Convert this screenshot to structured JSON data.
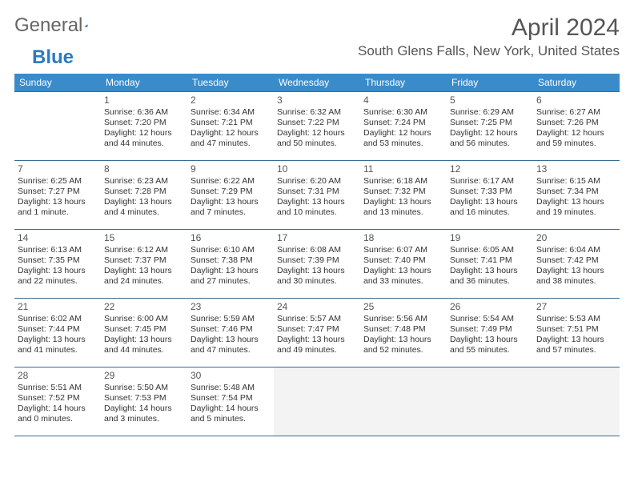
{
  "brand": {
    "part1": "General",
    "part2": "Blue"
  },
  "title": "April 2024",
  "location": "South Glens Falls, New York, United States",
  "colors": {
    "header_bg": "#3a8bc9",
    "header_text": "#ffffff",
    "row_border": "#3a6a8f",
    "trailing_bg": "#f3f3f3",
    "title_color": "#555555",
    "body_text": "#333333",
    "logo_gray": "#666666",
    "logo_blue": "#2b7bbd"
  },
  "typography": {
    "month_title_pt": 30,
    "location_pt": 17,
    "day_header_pt": 12,
    "cell_body_pt": 10.5
  },
  "layout": {
    "cols": 7,
    "rows": 5,
    "aspect_w": 792,
    "aspect_h": 612
  },
  "day_headers": [
    "Sunday",
    "Monday",
    "Tuesday",
    "Wednesday",
    "Thursday",
    "Friday",
    "Saturday"
  ],
  "weeks": [
    [
      null,
      {
        "d": "1",
        "sr": "Sunrise: 6:36 AM",
        "ss": "Sunset: 7:20 PM",
        "dl1": "Daylight: 12 hours",
        "dl2": "and 44 minutes."
      },
      {
        "d": "2",
        "sr": "Sunrise: 6:34 AM",
        "ss": "Sunset: 7:21 PM",
        "dl1": "Daylight: 12 hours",
        "dl2": "and 47 minutes."
      },
      {
        "d": "3",
        "sr": "Sunrise: 6:32 AM",
        "ss": "Sunset: 7:22 PM",
        "dl1": "Daylight: 12 hours",
        "dl2": "and 50 minutes."
      },
      {
        "d": "4",
        "sr": "Sunrise: 6:30 AM",
        "ss": "Sunset: 7:24 PM",
        "dl1": "Daylight: 12 hours",
        "dl2": "and 53 minutes."
      },
      {
        "d": "5",
        "sr": "Sunrise: 6:29 AM",
        "ss": "Sunset: 7:25 PM",
        "dl1": "Daylight: 12 hours",
        "dl2": "and 56 minutes."
      },
      {
        "d": "6",
        "sr": "Sunrise: 6:27 AM",
        "ss": "Sunset: 7:26 PM",
        "dl1": "Daylight: 12 hours",
        "dl2": "and 59 minutes."
      }
    ],
    [
      {
        "d": "7",
        "sr": "Sunrise: 6:25 AM",
        "ss": "Sunset: 7:27 PM",
        "dl1": "Daylight: 13 hours",
        "dl2": "and 1 minute."
      },
      {
        "d": "8",
        "sr": "Sunrise: 6:23 AM",
        "ss": "Sunset: 7:28 PM",
        "dl1": "Daylight: 13 hours",
        "dl2": "and 4 minutes."
      },
      {
        "d": "9",
        "sr": "Sunrise: 6:22 AM",
        "ss": "Sunset: 7:29 PM",
        "dl1": "Daylight: 13 hours",
        "dl2": "and 7 minutes."
      },
      {
        "d": "10",
        "sr": "Sunrise: 6:20 AM",
        "ss": "Sunset: 7:31 PM",
        "dl1": "Daylight: 13 hours",
        "dl2": "and 10 minutes."
      },
      {
        "d": "11",
        "sr": "Sunrise: 6:18 AM",
        "ss": "Sunset: 7:32 PM",
        "dl1": "Daylight: 13 hours",
        "dl2": "and 13 minutes."
      },
      {
        "d": "12",
        "sr": "Sunrise: 6:17 AM",
        "ss": "Sunset: 7:33 PM",
        "dl1": "Daylight: 13 hours",
        "dl2": "and 16 minutes."
      },
      {
        "d": "13",
        "sr": "Sunrise: 6:15 AM",
        "ss": "Sunset: 7:34 PM",
        "dl1": "Daylight: 13 hours",
        "dl2": "and 19 minutes."
      }
    ],
    [
      {
        "d": "14",
        "sr": "Sunrise: 6:13 AM",
        "ss": "Sunset: 7:35 PM",
        "dl1": "Daylight: 13 hours",
        "dl2": "and 22 minutes."
      },
      {
        "d": "15",
        "sr": "Sunrise: 6:12 AM",
        "ss": "Sunset: 7:37 PM",
        "dl1": "Daylight: 13 hours",
        "dl2": "and 24 minutes."
      },
      {
        "d": "16",
        "sr": "Sunrise: 6:10 AM",
        "ss": "Sunset: 7:38 PM",
        "dl1": "Daylight: 13 hours",
        "dl2": "and 27 minutes."
      },
      {
        "d": "17",
        "sr": "Sunrise: 6:08 AM",
        "ss": "Sunset: 7:39 PM",
        "dl1": "Daylight: 13 hours",
        "dl2": "and 30 minutes."
      },
      {
        "d": "18",
        "sr": "Sunrise: 6:07 AM",
        "ss": "Sunset: 7:40 PM",
        "dl1": "Daylight: 13 hours",
        "dl2": "and 33 minutes."
      },
      {
        "d": "19",
        "sr": "Sunrise: 6:05 AM",
        "ss": "Sunset: 7:41 PM",
        "dl1": "Daylight: 13 hours",
        "dl2": "and 36 minutes."
      },
      {
        "d": "20",
        "sr": "Sunrise: 6:04 AM",
        "ss": "Sunset: 7:42 PM",
        "dl1": "Daylight: 13 hours",
        "dl2": "and 38 minutes."
      }
    ],
    [
      {
        "d": "21",
        "sr": "Sunrise: 6:02 AM",
        "ss": "Sunset: 7:44 PM",
        "dl1": "Daylight: 13 hours",
        "dl2": "and 41 minutes."
      },
      {
        "d": "22",
        "sr": "Sunrise: 6:00 AM",
        "ss": "Sunset: 7:45 PM",
        "dl1": "Daylight: 13 hours",
        "dl2": "and 44 minutes."
      },
      {
        "d": "23",
        "sr": "Sunrise: 5:59 AM",
        "ss": "Sunset: 7:46 PM",
        "dl1": "Daylight: 13 hours",
        "dl2": "and 47 minutes."
      },
      {
        "d": "24",
        "sr": "Sunrise: 5:57 AM",
        "ss": "Sunset: 7:47 PM",
        "dl1": "Daylight: 13 hours",
        "dl2": "and 49 minutes."
      },
      {
        "d": "25",
        "sr": "Sunrise: 5:56 AM",
        "ss": "Sunset: 7:48 PM",
        "dl1": "Daylight: 13 hours",
        "dl2": "and 52 minutes."
      },
      {
        "d": "26",
        "sr": "Sunrise: 5:54 AM",
        "ss": "Sunset: 7:49 PM",
        "dl1": "Daylight: 13 hours",
        "dl2": "and 55 minutes."
      },
      {
        "d": "27",
        "sr": "Sunrise: 5:53 AM",
        "ss": "Sunset: 7:51 PM",
        "dl1": "Daylight: 13 hours",
        "dl2": "and 57 minutes."
      }
    ],
    [
      {
        "d": "28",
        "sr": "Sunrise: 5:51 AM",
        "ss": "Sunset: 7:52 PM",
        "dl1": "Daylight: 14 hours",
        "dl2": "and 0 minutes."
      },
      {
        "d": "29",
        "sr": "Sunrise: 5:50 AM",
        "ss": "Sunset: 7:53 PM",
        "dl1": "Daylight: 14 hours",
        "dl2": "and 3 minutes."
      },
      {
        "d": "30",
        "sr": "Sunrise: 5:48 AM",
        "ss": "Sunset: 7:54 PM",
        "dl1": "Daylight: 14 hours",
        "dl2": "and 5 minutes."
      },
      {
        "trailing": true
      },
      {
        "trailing": true
      },
      {
        "trailing": true
      },
      {
        "trailing": true
      }
    ]
  ]
}
